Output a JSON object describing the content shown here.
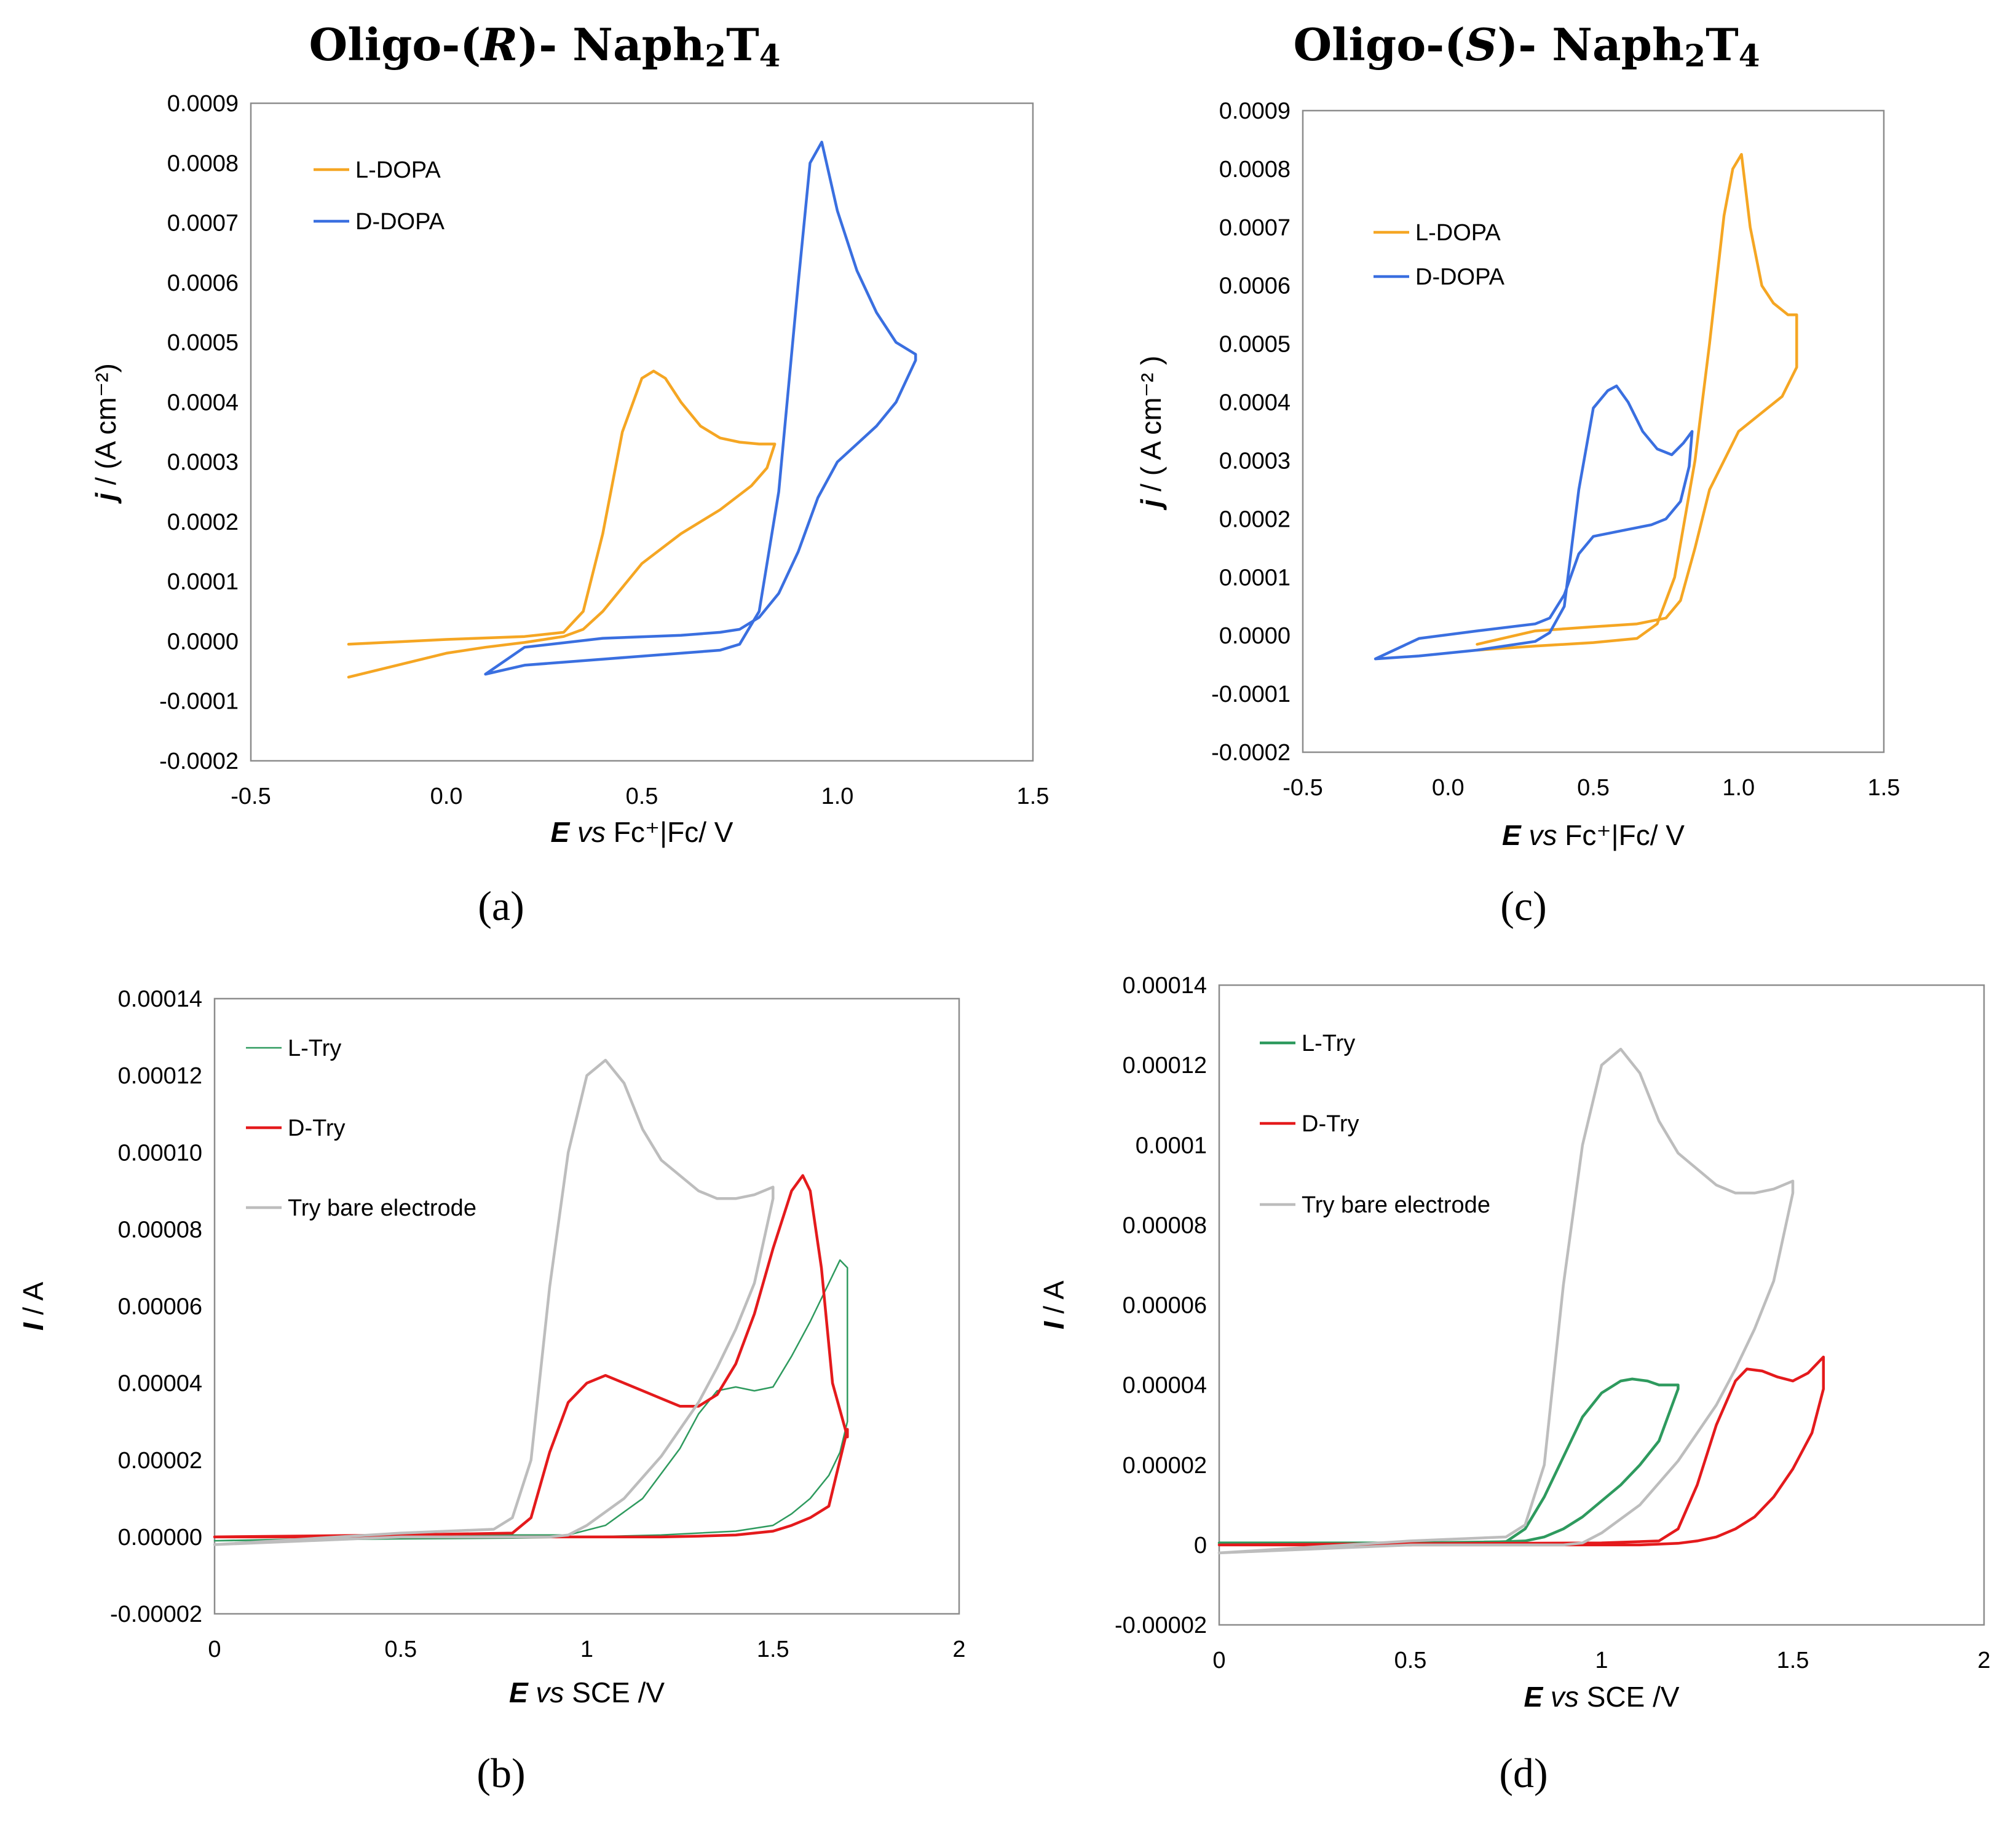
{
  "chart_data": [
    {
      "id": "a",
      "type": "line",
      "title": "Oligo-(R)- Naph2T4",
      "title_parts": {
        "pre": "Oligo-(",
        "italic": "R",
        "mid": ")- Naph",
        "sub1": "2",
        "mid2": "T",
        "sub2": "4"
      },
      "panel_label": "(a)",
      "xlabel": {
        "bold_italic": "E",
        "italic": "vs",
        "rest": "Fc⁺|Fc/ V"
      },
      "ylabel": {
        "bold_italic": "j",
        "rest": "/ (A cm⁻²)"
      },
      "xlim": [
        -0.5,
        1.5
      ],
      "ylim": [
        -0.0002,
        0.0009
      ],
      "x_ticks": [
        "-0.5",
        "0.0",
        "0.5",
        "1.0",
        "1.5"
      ],
      "y_ticks": [
        "-0.0002",
        "-0.0001",
        "0.0000",
        "0.0001",
        "0.0002",
        "0.0003",
        "0.0004",
        "0.0005",
        "0.0006",
        "0.0007",
        "0.0008",
        "0.0009"
      ],
      "legend_position": "top-left",
      "series": [
        {
          "name": "L-DOPA",
          "color": "#f5a623",
          "x": [
            -0.25,
            0.0,
            0.2,
            0.3,
            0.35,
            0.4,
            0.45,
            0.5,
            0.53,
            0.56,
            0.6,
            0.65,
            0.7,
            0.75,
            0.8,
            0.84,
            0.82,
            0.78,
            0.7,
            0.6,
            0.5,
            0.45,
            0.4,
            0.35,
            0.3,
            0.2,
            0.1,
            0.0,
            -0.25
          ],
          "y": [
            -5e-06,
            3e-06,
            8e-06,
            1.5e-05,
            5e-05,
            0.00018,
            0.00035,
            0.00044,
            0.000452,
            0.00044,
            0.0004,
            0.00036,
            0.00034,
            0.000333,
            0.00033,
            0.00033,
            0.00029,
            0.00026,
            0.00022,
            0.00018,
            0.00013,
            9e-05,
            5e-05,
            2e-05,
            8e-06,
            -2e-06,
            -1e-05,
            -2e-05,
            -6e-05
          ]
        },
        {
          "name": "D-DOPA",
          "color": "#3a6fe0",
          "x": [
            0.1,
            0.2,
            0.4,
            0.6,
            0.7,
            0.75,
            0.8,
            0.85,
            0.9,
            0.93,
            0.96,
            1.0,
            1.05,
            1.1,
            1.15,
            1.2,
            1.2,
            1.15,
            1.1,
            1.05,
            1.0,
            0.95,
            0.9,
            0.85,
            0.8,
            0.75,
            0.7,
            0.6,
            0.4,
            0.2,
            0.1
          ],
          "y": [
            -5.5e-05,
            -4e-05,
            -3e-05,
            -2e-05,
            -1.5e-05,
            -5e-06,
            5e-05,
            0.00025,
            0.0006,
            0.0008,
            0.000835,
            0.00072,
            0.00062,
            0.00055,
            0.0005,
            0.00048,
            0.00047,
            0.0004,
            0.00036,
            0.00033,
            0.0003,
            0.00024,
            0.00015,
            8e-05,
            4e-05,
            2e-05,
            1.5e-05,
            1e-05,
            5e-06,
            -1e-05,
            -5.5e-05
          ]
        }
      ]
    },
    {
      "id": "c",
      "type": "line",
      "title": "Oligo-(S)- Naph2T4",
      "title_parts": {
        "pre": "Oligo-(",
        "italic": "S",
        "mid": ")- Naph",
        "sub1": "2",
        "mid2": "T",
        "sub2": "4"
      },
      "panel_label": "(c)",
      "xlabel": {
        "bold_italic": "E",
        "italic": "vs",
        "rest": "Fc⁺|Fc/ V"
      },
      "ylabel": {
        "bold_italic": "j",
        "rest": "/ ( A cm⁻² )"
      },
      "xlim": [
        -0.5,
        1.5
      ],
      "ylim": [
        -0.0002,
        0.0009
      ],
      "x_ticks": [
        "-0.5",
        "0.0",
        "0.5",
        "1.0",
        "1.5"
      ],
      "y_ticks": [
        "-0.0002",
        "-0.0001",
        "0.0000",
        "0.0001",
        "0.0002",
        "0.0003",
        "0.0004",
        "0.0005",
        "0.0006",
        "0.0007",
        "0.0008",
        "0.0009"
      ],
      "legend_position": "top-left",
      "series": [
        {
          "name": "L-DOPA",
          "color": "#f5a623",
          "x": [
            0.1,
            0.3,
            0.5,
            0.65,
            0.72,
            0.78,
            0.85,
            0.9,
            0.95,
            0.98,
            1.01,
            1.04,
            1.08,
            1.12,
            1.17,
            1.2,
            1.2,
            1.15,
            1.1,
            1.0,
            0.9,
            0.85,
            0.8,
            0.75,
            0.65,
            0.5,
            0.3,
            0.1
          ],
          "y": [
            -2.5e-05,
            -1.8e-05,
            -1.2e-05,
            -5e-06,
            2e-05,
            0.0001,
            0.0003,
            0.0005,
            0.00072,
            0.0008,
            0.000825,
            0.0007,
            0.0006,
            0.00057,
            0.00055,
            0.00055,
            0.00046,
            0.00041,
            0.00039,
            0.00035,
            0.00025,
            0.00015,
            6e-05,
            3e-05,
            2e-05,
            1.5e-05,
            8e-06,
            -1.5e-05
          ]
        },
        {
          "name": "D-DOPA",
          "color": "#3a6fe0",
          "x": [
            -0.25,
            -0.1,
            0.1,
            0.3,
            0.35,
            0.4,
            0.45,
            0.5,
            0.55,
            0.58,
            0.62,
            0.67,
            0.72,
            0.77,
            0.81,
            0.84,
            0.83,
            0.8,
            0.75,
            0.7,
            0.6,
            0.5,
            0.45,
            0.4,
            0.35,
            0.3,
            0.1,
            -0.1,
            -0.25
          ],
          "y": [
            -4e-05,
            -3.5e-05,
            -2.5e-05,
            -1e-05,
            5e-06,
            5e-05,
            0.00025,
            0.00039,
            0.00042,
            0.000428,
            0.0004,
            0.00035,
            0.00032,
            0.00031,
            0.00033,
            0.00035,
            0.00029,
            0.00023,
            0.0002,
            0.00019,
            0.00018,
            0.00017,
            0.00014,
            7e-05,
            3e-05,
            2e-05,
            8e-06,
            -5e-06,
            -4e-05
          ]
        }
      ]
    },
    {
      "id": "b",
      "type": "line",
      "title": "",
      "panel_label": "(b)",
      "xlabel": {
        "bold_italic": "E",
        "italic": "vs",
        "rest": "SCE /V"
      },
      "ylabel": {
        "bold_italic": "I",
        "rest": "/ A"
      },
      "xlim": [
        0,
        2
      ],
      "ylim": [
        -2e-05,
        0.00014
      ],
      "x_ticks": [
        "0",
        "0.5",
        "1",
        "1.5",
        "2"
      ],
      "y_ticks": [
        "-0.00002",
        "0.00000",
        "0.00002",
        "0.00004",
        "0.00006",
        "0.00008",
        "0.00010",
        "0.00012",
        "0.00014"
      ],
      "legend_position": "top-left",
      "series": [
        {
          "name": "L-Try",
          "color": "#2e9a5e",
          "thin": true,
          "x": [
            0,
            0.5,
            0.8,
            0.95,
            1.05,
            1.15,
            1.25,
            1.3,
            1.35,
            1.4,
            1.45,
            1.5,
            1.55,
            1.6,
            1.65,
            1.68,
            1.7,
            1.7,
            1.68,
            1.65,
            1.6,
            1.55,
            1.5,
            1.4,
            1.3,
            1.2,
            1.0,
            0.8,
            0.5,
            0
          ],
          "y": [
            -1e-06,
            0,
            5e-07,
            5e-07,
            3e-06,
            1e-05,
            2.3e-05,
            3.2e-05,
            3.8e-05,
            3.9e-05,
            3.8e-05,
            3.9e-05,
            4.7e-05,
            5.6e-05,
            6.6e-05,
            7.2e-05,
            7e-05,
            3e-05,
            2.2e-05,
            1.6e-05,
            1e-05,
            6e-06,
            3e-06,
            1.5e-06,
            1e-06,
            5e-07,
            0,
            -3e-07,
            -5e-07,
            -1e-06
          ]
        },
        {
          "name": "D-Try",
          "color": "#e41a1c",
          "thin": false,
          "x": [
            0,
            0.5,
            0.8,
            0.85,
            0.9,
            0.95,
            1.0,
            1.05,
            1.1,
            1.15,
            1.2,
            1.25,
            1.3,
            1.35,
            1.4,
            1.45,
            1.5,
            1.55,
            1.58,
            1.6,
            1.63,
            1.66,
            1.7,
            1.7,
            1.65,
            1.6,
            1.55,
            1.5,
            1.4,
            1.3,
            1.2,
            1.1,
            1.0,
            0.9,
            0.8,
            0.5,
            0
          ],
          "y": [
            0,
            5e-07,
            1e-06,
            5e-06,
            2.2e-05,
            3.5e-05,
            4e-05,
            4.2e-05,
            4e-05,
            3.8e-05,
            3.6e-05,
            3.4e-05,
            3.4e-05,
            3.7e-05,
            4.5e-05,
            5.8e-05,
            7.5e-05,
            9e-05,
            9.4e-05,
            9e-05,
            7e-05,
            4e-05,
            2.6e-05,
            2.8e-05,
            8e-06,
            5e-06,
            3e-06,
            1.5e-06,
            5e-07,
            2e-07,
            0,
            0,
            0,
            0,
            0,
            0,
            0
          ]
        },
        {
          "name": "Try bare electrode",
          "color": "#bdbdbd",
          "thin": false,
          "x": [
            0,
            0.5,
            0.75,
            0.8,
            0.85,
            0.9,
            0.95,
            1.0,
            1.05,
            1.1,
            1.15,
            1.2,
            1.25,
            1.3,
            1.35,
            1.4,
            1.45,
            1.5,
            1.5,
            1.45,
            1.4,
            1.35,
            1.3,
            1.25,
            1.2,
            1.1,
            1.0,
            0.95,
            0.9,
            0.8,
            0.5,
            0
          ],
          "y": [
            -2e-06,
            1e-06,
            2e-06,
            5e-06,
            2e-05,
            6.5e-05,
            0.0001,
            0.00012,
            0.000124,
            0.000118,
            0.000106,
            9.8e-05,
            9.4e-05,
            9e-05,
            8.8e-05,
            8.8e-05,
            8.9e-05,
            9.1e-05,
            8.8e-05,
            6.6e-05,
            5.4e-05,
            4.4e-05,
            3.5e-05,
            2.8e-05,
            2.1e-05,
            1e-05,
            3e-06,
            5e-07,
            0,
            0,
            0,
            -2e-06
          ]
        }
      ]
    },
    {
      "id": "d",
      "type": "line",
      "title": "",
      "panel_label": "(d)",
      "xlabel": {
        "bold_italic": "E",
        "italic": "vs",
        "rest": "SCE /V"
      },
      "ylabel": {
        "bold_italic": "I",
        "rest": "/ A"
      },
      "xlim": [
        0,
        2
      ],
      "ylim": [
        -2e-05,
        0.00014
      ],
      "x_ticks": [
        "0",
        "0.5",
        "1",
        "1.5",
        "2"
      ],
      "y_ticks": [
        "-0.00002",
        "0",
        "0.00002",
        "0.00004",
        "0.00006",
        "0.00008",
        "0.0001",
        "0.00012",
        "0.00014"
      ],
      "legend_position": "top-left",
      "series": [
        {
          "name": "L-Try",
          "color": "#2e9a5e",
          "thin": false,
          "x": [
            0,
            0.5,
            0.75,
            0.8,
            0.85,
            0.9,
            0.95,
            1.0,
            1.05,
            1.08,
            1.12,
            1.15,
            1.2,
            1.2,
            1.15,
            1.1,
            1.05,
            1.0,
            0.95,
            0.9,
            0.85,
            0.8,
            0.5,
            0
          ],
          "y": [
            5e-07,
            5e-07,
            8e-07,
            4e-06,
            1.2e-05,
            2.2e-05,
            3.2e-05,
            3.8e-05,
            4.1e-05,
            4.15e-05,
            4.1e-05,
            4e-05,
            4e-05,
            3.9e-05,
            2.6e-05,
            2e-05,
            1.5e-05,
            1.1e-05,
            7e-06,
            4e-06,
            2e-06,
            1e-06,
            0,
            5e-07
          ]
        },
        {
          "name": "D-Try",
          "color": "#e41a1c",
          "thin": false,
          "x": [
            0,
            0.5,
            1.0,
            1.15,
            1.2,
            1.25,
            1.3,
            1.35,
            1.38,
            1.42,
            1.46,
            1.5,
            1.54,
            1.58,
            1.58,
            1.55,
            1.5,
            1.45,
            1.4,
            1.35,
            1.3,
            1.25,
            1.2,
            1.1,
            0.5,
            0
          ],
          "y": [
            0,
            3e-07,
            5e-07,
            1e-06,
            4e-06,
            1.5e-05,
            3e-05,
            4.1e-05,
            4.4e-05,
            4.35e-05,
            4.2e-05,
            4.1e-05,
            4.3e-05,
            4.7e-05,
            3.9e-05,
            2.8e-05,
            1.9e-05,
            1.2e-05,
            7e-06,
            4e-06,
            2e-06,
            1e-06,
            4e-07,
            0,
            0,
            0
          ]
        },
        {
          "name": "Try bare electrode",
          "color": "#bdbdbd",
          "thin": false,
          "x": [
            0,
            0.5,
            0.75,
            0.8,
            0.85,
            0.9,
            0.95,
            1.0,
            1.05,
            1.1,
            1.15,
            1.2,
            1.25,
            1.3,
            1.35,
            1.4,
            1.45,
            1.5,
            1.5,
            1.45,
            1.4,
            1.35,
            1.3,
            1.25,
            1.2,
            1.1,
            1.0,
            0.95,
            0.9,
            0.8,
            0.5,
            0
          ],
          "y": [
            -2e-06,
            1e-06,
            2e-06,
            5e-06,
            2e-05,
            6.5e-05,
            0.0001,
            0.00012,
            0.000124,
            0.000118,
            0.000106,
            9.8e-05,
            9.4e-05,
            9e-05,
            8.8e-05,
            8.8e-05,
            8.9e-05,
            9.1e-05,
            8.8e-05,
            6.6e-05,
            5.4e-05,
            4.4e-05,
            3.5e-05,
            2.8e-05,
            2.1e-05,
            1e-05,
            3e-06,
            5e-07,
            0,
            0,
            0,
            -2e-06
          ]
        }
      ]
    }
  ]
}
